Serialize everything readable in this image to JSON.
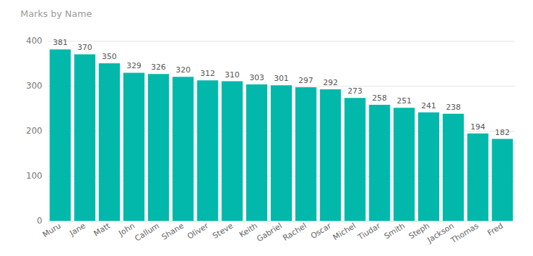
{
  "chart_data": {
    "type": "bar",
    "title": "Marks by Name",
    "categories": [
      "Muru",
      "Jane",
      "Matt",
      "John",
      "Callum",
      "Shane",
      "Oliver",
      "Steve",
      "Keith",
      "Gabriel",
      "Rachel",
      "Oscar",
      "Michel",
      "Tiudar",
      "Smith",
      "Steph",
      "Jackson",
      "Thomas",
      "Fred"
    ],
    "values": [
      381,
      370,
      350,
      329,
      326,
      320,
      312,
      310,
      303,
      301,
      297,
      292,
      273,
      258,
      251,
      241,
      238,
      194,
      182
    ],
    "color": "#01b8aa",
    "ylim": [
      0,
      400
    ],
    "yticks": [
      0,
      100,
      200,
      300,
      400
    ],
    "grid": true,
    "data_labels": true
  }
}
